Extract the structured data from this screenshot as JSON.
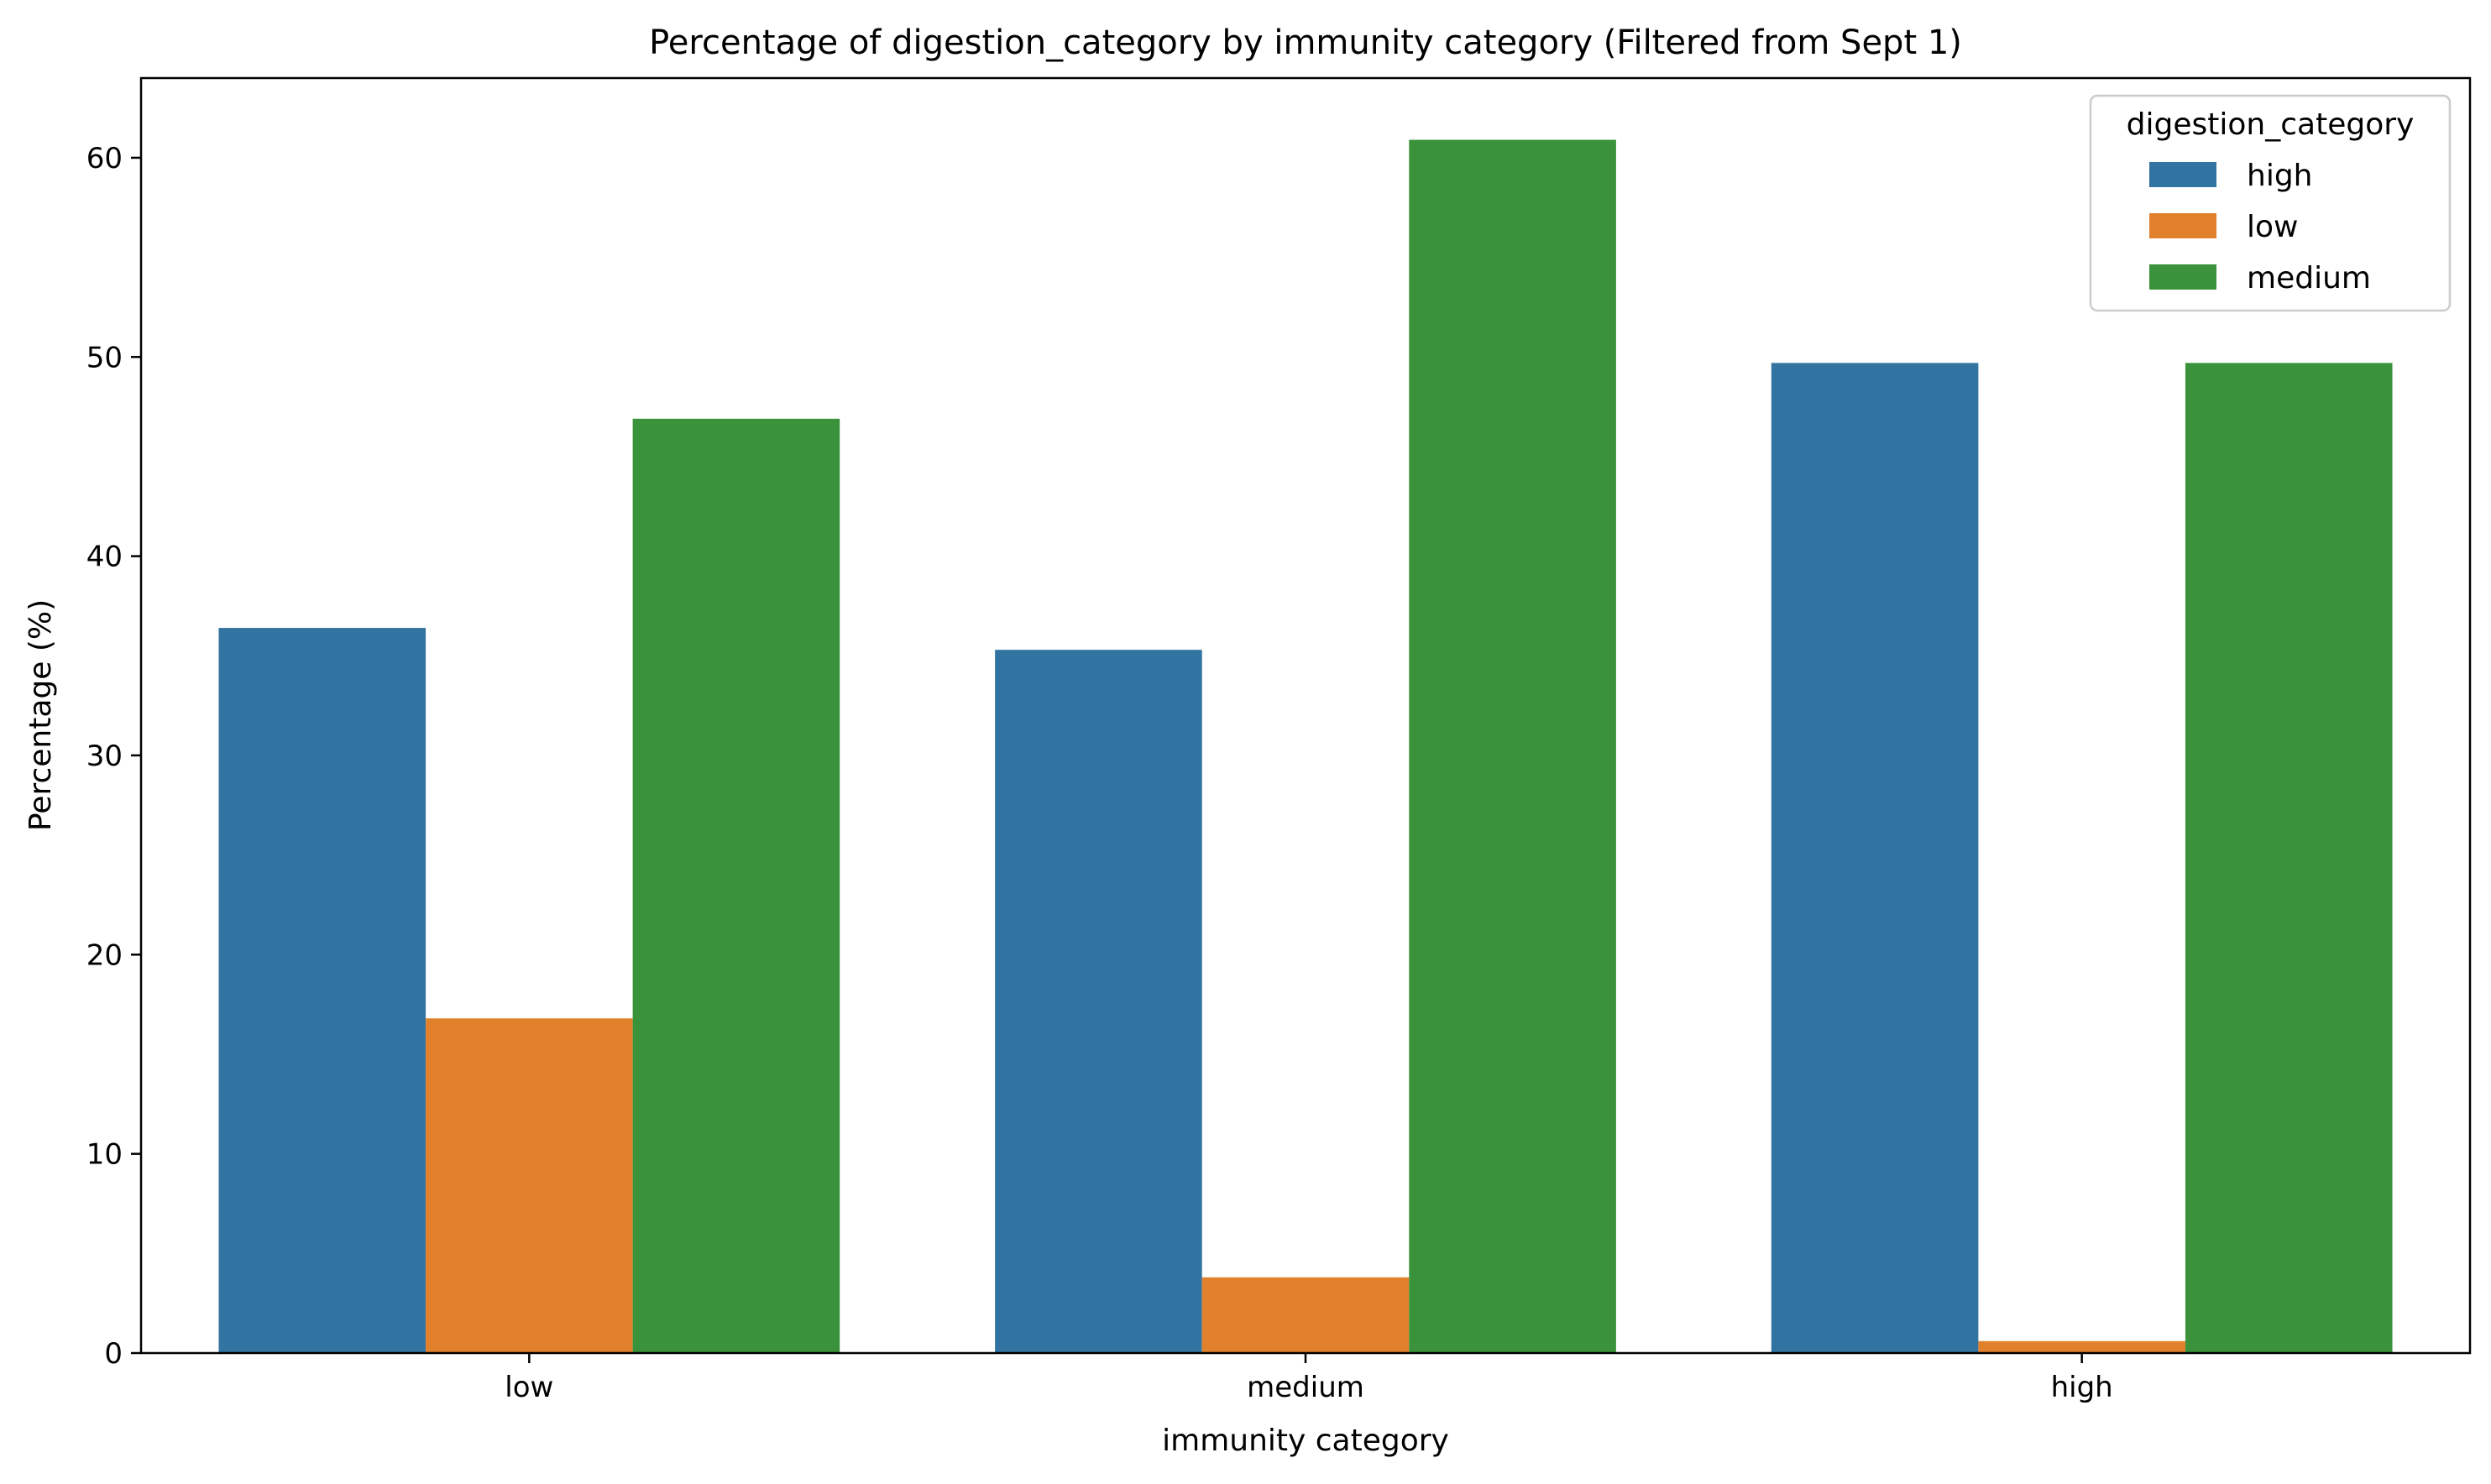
{
  "chart_data": {
    "type": "bar",
    "title": "Percentage of digestion_category by immunity category (Filtered from Sept 1)",
    "xlabel": "immunity category",
    "ylabel": "Percentage (%)",
    "categories": [
      "low",
      "medium",
      "high"
    ],
    "ylim": [
      0,
      64
    ],
    "yticks": [
      0,
      10,
      20,
      30,
      40,
      50,
      60
    ],
    "grid": false,
    "legend": {
      "title": "digestion_category",
      "placement": "top-right"
    },
    "series": [
      {
        "name": "high",
        "color": "#3274a1",
        "values": [
          36.4,
          35.3,
          49.7
        ]
      },
      {
        "name": "low",
        "color": "#e1812c",
        "values": [
          16.8,
          3.8,
          0.6
        ]
      },
      {
        "name": "medium",
        "color": "#3a923a",
        "values": [
          46.9,
          60.9,
          49.7
        ]
      }
    ]
  }
}
